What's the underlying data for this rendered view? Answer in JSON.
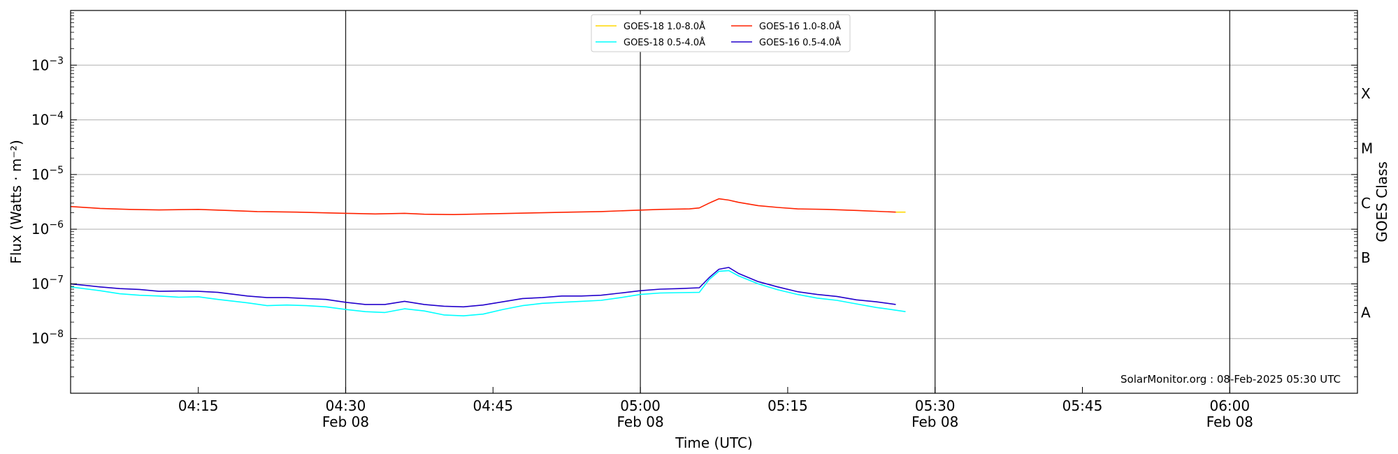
{
  "chart_data": {
    "type": "line",
    "xlabel": "Time (UTC)",
    "ylabel": "Flux (Watts · m⁻²)",
    "y2label": "GOES Class",
    "credit": "SolarMonitor.org : 08-Feb-2025 05:30 UTC",
    "y_scale": "log",
    "ylim": [
      1e-09,
      0.01
    ],
    "xlim": [
      "2025-02-08 04:02",
      "2025-02-08 06:13"
    ],
    "grid": "horizontal at decades",
    "legend_position": "top-center",
    "yticks": [
      {
        "value": 1e-08,
        "base": "10",
        "exp": "−8"
      },
      {
        "value": 1e-07,
        "base": "10",
        "exp": "−7"
      },
      {
        "value": 1e-06,
        "base": "10",
        "exp": "−6"
      },
      {
        "value": 1e-05,
        "base": "10",
        "exp": "−5"
      },
      {
        "value": 0.0001,
        "base": "10",
        "exp": "−4"
      },
      {
        "value": 0.001,
        "base": "10",
        "exp": "−3"
      }
    ],
    "xticks": [
      {
        "time": "04:15",
        "label": "04:15",
        "date": ""
      },
      {
        "time": "04:30",
        "label": "04:30",
        "date": "Feb 08"
      },
      {
        "time": "04:45",
        "label": "04:45",
        "date": ""
      },
      {
        "time": "05:00",
        "label": "05:00",
        "date": "Feb 08"
      },
      {
        "time": "05:15",
        "label": "05:15",
        "date": ""
      },
      {
        "time": "05:30",
        "label": "05:30",
        "date": "Feb 08"
      },
      {
        "time": "05:45",
        "label": "05:45",
        "date": ""
      },
      {
        "time": "06:00",
        "label": "06:00",
        "date": "Feb 08"
      }
    ],
    "vlines": [
      "04:30",
      "05:00",
      "05:30",
      "06:00"
    ],
    "goes_classes": [
      {
        "label": "A",
        "value": 3e-08
      },
      {
        "label": "B",
        "value": 3e-07
      },
      {
        "label": "C",
        "value": 3e-06
      },
      {
        "label": "M",
        "value": 3e-05
      },
      {
        "label": "X",
        "value": 0.0003
      }
    ],
    "series": [
      {
        "name": "GOES-18 1.0-8.0Å",
        "color": "#ffd700",
        "points": [
          [
            "05:26",
            2.05e-06
          ],
          [
            "05:27",
            2.05e-06
          ]
        ]
      },
      {
        "name": "GOES-16 1.0-8.0Å",
        "color": "#ff2200",
        "points": [
          [
            "04:02",
            2.6e-06
          ],
          [
            "04:05",
            2.4e-06
          ],
          [
            "04:08",
            2.3e-06
          ],
          [
            "04:11",
            2.25e-06
          ],
          [
            "04:15",
            2.3e-06
          ],
          [
            "04:18",
            2.2e-06
          ],
          [
            "04:21",
            2.1e-06
          ],
          [
            "04:25",
            2.05e-06
          ],
          [
            "04:30",
            1.95e-06
          ],
          [
            "04:33",
            1.9e-06
          ],
          [
            "04:36",
            1.95e-06
          ],
          [
            "04:38",
            1.88e-06
          ],
          [
            "04:41",
            1.85e-06
          ],
          [
            "04:44",
            1.9e-06
          ],
          [
            "04:47",
            1.95e-06
          ],
          [
            "04:50",
            2e-06
          ],
          [
            "04:53",
            2.05e-06
          ],
          [
            "04:56",
            2.1e-06
          ],
          [
            "04:59",
            2.2e-06
          ],
          [
            "05:02",
            2.3e-06
          ],
          [
            "05:05",
            2.35e-06
          ],
          [
            "05:06",
            2.45e-06
          ],
          [
            "05:07",
            3e-06
          ],
          [
            "05:08",
            3.6e-06
          ],
          [
            "05:09",
            3.4e-06
          ],
          [
            "05:10",
            3.1e-06
          ],
          [
            "05:12",
            2.7e-06
          ],
          [
            "05:14",
            2.5e-06
          ],
          [
            "05:16",
            2.35e-06
          ],
          [
            "05:19",
            2.3e-06
          ],
          [
            "05:22",
            2.2e-06
          ],
          [
            "05:26",
            2.05e-06
          ]
        ]
      },
      {
        "name": "GOES-18 0.5-4.0Å",
        "color": "#00ffff",
        "points": [
          [
            "04:02",
            8.8e-08
          ],
          [
            "04:05",
            7.5e-08
          ],
          [
            "04:07",
            6.6e-08
          ],
          [
            "04:09",
            6.2e-08
          ],
          [
            "04:11",
            6e-08
          ],
          [
            "04:13",
            5.7e-08
          ],
          [
            "04:15",
            5.8e-08
          ],
          [
            "04:17",
            5.2e-08
          ],
          [
            "04:20",
            4.5e-08
          ],
          [
            "04:22",
            4e-08
          ],
          [
            "04:24",
            4.1e-08
          ],
          [
            "04:26",
            4e-08
          ],
          [
            "04:28",
            3.8e-08
          ],
          [
            "04:30",
            3.4e-08
          ],
          [
            "04:32",
            3.1e-08
          ],
          [
            "04:34",
            3e-08
          ],
          [
            "04:36",
            3.5e-08
          ],
          [
            "04:38",
            3.2e-08
          ],
          [
            "04:40",
            2.7e-08
          ],
          [
            "04:42",
            2.6e-08
          ],
          [
            "04:44",
            2.8e-08
          ],
          [
            "04:46",
            3.4e-08
          ],
          [
            "04:48",
            4e-08
          ],
          [
            "04:50",
            4.4e-08
          ],
          [
            "04:52",
            4.6e-08
          ],
          [
            "04:54",
            4.8e-08
          ],
          [
            "04:56",
            5e-08
          ],
          [
            "04:58",
            5.6e-08
          ],
          [
            "05:00",
            6.4e-08
          ],
          [
            "05:02",
            6.8e-08
          ],
          [
            "05:04",
            6.9e-08
          ],
          [
            "05:06",
            7e-08
          ],
          [
            "05:07",
            1.2e-07
          ],
          [
            "05:08",
            1.7e-07
          ],
          [
            "05:09",
            1.75e-07
          ],
          [
            "05:10",
            1.4e-07
          ],
          [
            "05:12",
            1e-07
          ],
          [
            "05:14",
            7.8e-08
          ],
          [
            "05:16",
            6.4e-08
          ],
          [
            "05:18",
            5.5e-08
          ],
          [
            "05:20",
            5e-08
          ],
          [
            "05:22",
            4.3e-08
          ],
          [
            "05:24",
            3.7e-08
          ],
          [
            "05:25",
            3.5e-08
          ],
          [
            "05:27",
            3.1e-08
          ]
        ]
      },
      {
        "name": "GOES-16 0.5-4.0Å",
        "color": "#2200cc",
        "points": [
          [
            "04:02",
            1e-07
          ],
          [
            "04:05",
            8.8e-08
          ],
          [
            "04:07",
            8.2e-08
          ],
          [
            "04:09",
            7.9e-08
          ],
          [
            "04:11",
            7.3e-08
          ],
          [
            "04:13",
            7.4e-08
          ],
          [
            "04:15",
            7.3e-08
          ],
          [
            "04:17",
            7e-08
          ],
          [
            "04:20",
            6e-08
          ],
          [
            "04:22",
            5.6e-08
          ],
          [
            "04:24",
            5.6e-08
          ],
          [
            "04:26",
            5.4e-08
          ],
          [
            "04:28",
            5.2e-08
          ],
          [
            "04:30",
            4.6e-08
          ],
          [
            "04:32",
            4.2e-08
          ],
          [
            "04:34",
            4.2e-08
          ],
          [
            "04:36",
            4.8e-08
          ],
          [
            "04:38",
            4.2e-08
          ],
          [
            "04:40",
            3.9e-08
          ],
          [
            "04:42",
            3.8e-08
          ],
          [
            "04:44",
            4.1e-08
          ],
          [
            "04:46",
            4.7e-08
          ],
          [
            "04:48",
            5.4e-08
          ],
          [
            "04:50",
            5.6e-08
          ],
          [
            "04:52",
            6e-08
          ],
          [
            "04:54",
            6e-08
          ],
          [
            "04:56",
            6.2e-08
          ],
          [
            "04:58",
            6.8e-08
          ],
          [
            "05:00",
            7.5e-08
          ],
          [
            "05:02",
            8e-08
          ],
          [
            "05:04",
            8.2e-08
          ],
          [
            "05:06",
            8.5e-08
          ],
          [
            "05:07",
            1.3e-07
          ],
          [
            "05:08",
            1.85e-07
          ],
          [
            "05:09",
            2e-07
          ],
          [
            "05:10",
            1.55e-07
          ],
          [
            "05:12",
            1.1e-07
          ],
          [
            "05:14",
            8.8e-08
          ],
          [
            "05:16",
            7.2e-08
          ],
          [
            "05:18",
            6.4e-08
          ],
          [
            "05:20",
            5.9e-08
          ],
          [
            "05:22",
            5.1e-08
          ],
          [
            "05:24",
            4.7e-08
          ],
          [
            "05:26",
            4.2e-08
          ]
        ]
      }
    ]
  }
}
